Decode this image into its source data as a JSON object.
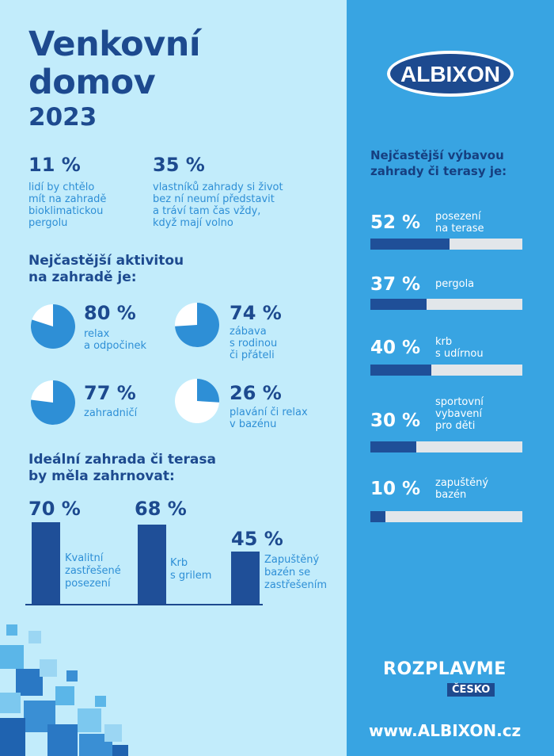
{
  "header": {
    "title_line1": "Venkovní",
    "title_line2": "domov",
    "year": "2023"
  },
  "stats": [
    {
      "value": "11 %",
      "text": [
        "lidí by chtělo",
        "mít na zahradě",
        "bioklimatickou",
        "pergolu"
      ]
    },
    {
      "value": "35 %",
      "text": [
        "vlastníků zahrady si život",
        "bez ní neumí představit",
        "a tráví tam čas vždy,",
        "když mají volno"
      ]
    }
  ],
  "activities": {
    "heading": [
      "Nejčastější aktivitou",
      "na zahradě je:"
    ],
    "items": [
      {
        "value": "80 %",
        "fraction": 0.8,
        "text": [
          "relax",
          "a odpočinek"
        ]
      },
      {
        "value": "74 %",
        "fraction": 0.74,
        "text": [
          "zábava",
          "s rodinou",
          "či přáteli"
        ]
      },
      {
        "value": "77 %",
        "fraction": 0.77,
        "text": [
          "zahradničí"
        ]
      },
      {
        "value": "26 %",
        "fraction": 0.26,
        "text": [
          "plavání či relax",
          "v bazénu"
        ]
      }
    ]
  },
  "ideal": {
    "heading": [
      "Ideální zahrada či terasa",
      "by měla zahrnovat:"
    ],
    "bars": [
      {
        "value": "70 %",
        "fraction": 0.7,
        "text": [
          "Kvalitní",
          "zastřešené",
          "posezení"
        ]
      },
      {
        "value": "68 %",
        "fraction": 0.68,
        "text": [
          "Krb",
          "s grilem"
        ]
      },
      {
        "value": "45 %",
        "fraction": 0.45,
        "text": [
          "Zapuštěný",
          "bazén se",
          "zastřešením"
        ]
      }
    ]
  },
  "brand": {
    "logo": "ALBIXON",
    "equipment_heading": [
      "Nejčastější výbavou",
      "zahrady či terasy je:"
    ],
    "equipment": [
      {
        "value": "52 %",
        "fraction": 0.52,
        "text": [
          "posezení",
          "na terase"
        ]
      },
      {
        "value": "37 %",
        "fraction": 0.37,
        "text": [
          "pergola"
        ]
      },
      {
        "value": "40 %",
        "fraction": 0.4,
        "text": [
          "krb",
          "s udírnou"
        ]
      },
      {
        "value": "30 %",
        "fraction": 0.3,
        "text": [
          "sportovní",
          "vybavení",
          "pro děti"
        ]
      },
      {
        "value": "10 %",
        "fraction": 0.1,
        "text": [
          "zapuštěný",
          "bazén"
        ]
      }
    ],
    "campaign_main": "ROZPLAVME",
    "campaign_sub": "ČESKO",
    "url": "www.ALBIXON.cz"
  },
  "colors": {
    "navy": "#1d4a8f",
    "accent_blue": "#2e8fd6",
    "right_panel": "#38a4e2",
    "left_panel": "#c2ecfb",
    "bar": "#1f4f98",
    "track": "#e2e6ea"
  }
}
